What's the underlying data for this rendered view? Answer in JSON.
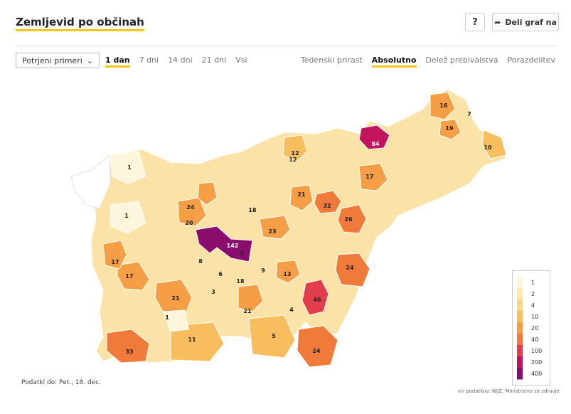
{
  "title": "Zemljevid po občinah",
  "help_label": "?",
  "share_label": "Deli graf na",
  "select": {
    "value": "Potrjeni primeri"
  },
  "period_tabs": [
    {
      "label": "1 dan",
      "active": true
    },
    {
      "label": "7 dni",
      "active": false
    },
    {
      "label": "14 dni",
      "active": false
    },
    {
      "label": "21 dni",
      "active": false
    },
    {
      "label": "Vsi",
      "active": false
    }
  ],
  "view_tabs": [
    {
      "label": "Tedenski prirast",
      "active": false
    },
    {
      "label": "Absolutno",
      "active": true
    },
    {
      "label": "Delež prebivalstva",
      "active": false
    },
    {
      "label": "Porazdelitev",
      "active": false
    }
  ],
  "legend": {
    "labels": [
      "1",
      "2",
      "4",
      "10",
      "20",
      "40",
      "100",
      "200",
      "400"
    ],
    "colors": [
      "#fdf5dc",
      "#fde9b0",
      "#fbd789",
      "#f8bd5d",
      "#f59e45",
      "#f07a3a",
      "#e23d4a",
      "#c2145d",
      "#8a0d6e"
    ]
  },
  "footnote": "Podatki do: Pet., 18. dec.",
  "source": "vir podatkov: NIJZ, Ministrstvo za zdravje",
  "map_values": [
    {
      "label": "1",
      "value": 1
    },
    {
      "label": "3",
      "value": 3
    },
    {
      "label": "16",
      "value": 16
    },
    {
      "label": "7",
      "value": 7
    },
    {
      "label": "19",
      "value": 19
    },
    {
      "label": "10",
      "value": 10
    },
    {
      "label": "84",
      "value": 84
    },
    {
      "label": "12",
      "value": 12
    },
    {
      "label": "11",
      "value": 11
    },
    {
      "label": "8",
      "value": 8
    },
    {
      "label": "4",
      "value": 4
    },
    {
      "label": "17",
      "value": 17
    },
    {
      "label": "21",
      "value": 21
    },
    {
      "label": "24",
      "value": 24
    },
    {
      "label": "20",
      "value": 20
    },
    {
      "label": "13",
      "value": 13
    },
    {
      "label": "18",
      "value": 18
    },
    {
      "label": "32",
      "value": 32
    },
    {
      "label": "26",
      "value": 26
    },
    {
      "label": "23",
      "value": 23
    },
    {
      "label": "142",
      "value": 142
    },
    {
      "label": "9",
      "value": 9
    },
    {
      "label": "6",
      "value": 6
    },
    {
      "label": "46",
      "value": 46
    },
    {
      "label": "33",
      "value": 33
    },
    {
      "label": "5",
      "value": 5
    },
    {
      "label": "2",
      "value": 2
    }
  ]
}
